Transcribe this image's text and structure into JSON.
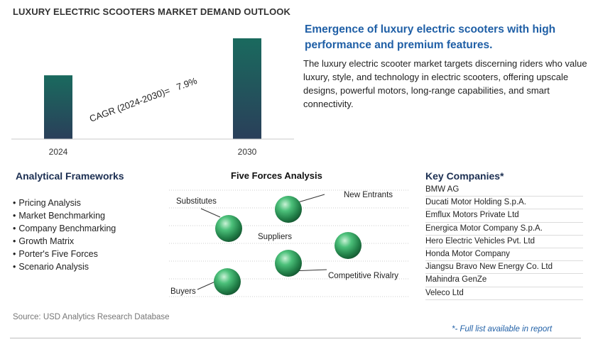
{
  "page_title": "LUXURY ELECTRIC SCOOTERS MARKET DEMAND OUTLOOK",
  "chart_data": {
    "type": "bar",
    "categories": [
      "2024",
      "2030"
    ],
    "values": [
      1.0,
      1.58
    ],
    "annotation": "CAGR (2024-2030)=   7.9%"
  },
  "colors": {
    "bar_top": "#1a6a5e",
    "bar_bottom": "#2a3f5a",
    "sphere": "#2f9a58",
    "headline": "#1f5fa6"
  },
  "headline": "Emergence of luxury electric scooters with high performance and premium features.",
  "description": "The luxury electric scooter market targets discerning riders who value luxury, style, and technology in electric scooters, offering upscale designs, powerful motors, long-range capabilities, and smart connectivity.",
  "frameworks": {
    "title": "Analytical Frameworks",
    "items": [
      "Pricing Analysis",
      "Market Benchmarking",
      "Company Benchmarking",
      "Growth Matrix",
      "Porter's Five Forces",
      "Scenario Analysis"
    ]
  },
  "five_forces": {
    "title": "Five Forces Analysis",
    "labels": {
      "substitutes": "Substitutes",
      "new_entrants": "New Entrants",
      "suppliers": "Suppliers",
      "competitive_rivalry": "Competitive Rivalry",
      "buyers": "Buyers"
    }
  },
  "companies": {
    "title": "Key Companies*",
    "items": [
      "BMW AG",
      "Ducati Motor Holding S.p.A.",
      "Emflux Motors Private Ltd",
      "Energica Motor Company S.p.A.",
      "Hero Electric Vehicles Pvt. Ltd",
      "Honda Motor Company",
      "Jiangsu Bravo New Energy Co. Ltd",
      "Mahindra GenZe",
      "Veleco Ltd"
    ]
  },
  "source": "Source: USD Analytics Research Database",
  "footnote": "*- Full list available in report"
}
